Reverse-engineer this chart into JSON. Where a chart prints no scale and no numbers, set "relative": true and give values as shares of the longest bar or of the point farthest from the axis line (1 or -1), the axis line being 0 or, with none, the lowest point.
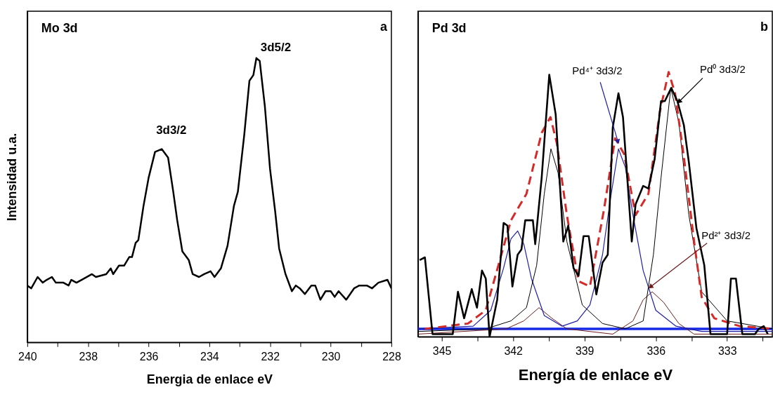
{
  "chart_data": [
    {
      "type": "line",
      "title": "Mo 3d",
      "xlabel": "Energia de enlace eV",
      "ylabel": "Intensidad u.a.",
      "relative": true,
      "grid": false,
      "xlim": [
        240,
        228
      ],
      "xticks": [
        240,
        {
          "value": 239,
          "label": null
        },
        238,
        {
          "value": 237,
          "label": null
        },
        236,
        {
          "value": 235,
          "label": null
        },
        234,
        {
          "value": 233,
          "label": null
        },
        232,
        {
          "value": 231,
          "label": null
        },
        230,
        {
          "value": 229,
          "label": null
        },
        228
      ],
      "annotations": [
        {
          "text": "3d3/2",
          "x": 235.57,
          "y": 0.68
        },
        {
          "text": "3d5/2",
          "x": 232.45,
          "y": 1.0
        },
        "a"
      ],
      "series": [
        {
          "color": "#000000",
          "x": [
            240.0,
            239.87,
            239.66,
            239.49,
            239.36,
            239.19,
            239.06,
            238.81,
            238.64,
            238.55,
            238.38,
            238.21,
            237.87,
            237.74,
            237.4,
            237.25,
            237.17,
            236.98,
            236.81,
            236.64,
            236.55,
            236.43,
            236.34,
            236.17,
            236.0,
            235.79,
            235.57,
            235.36,
            235.19,
            235.06,
            234.89,
            234.68,
            234.55,
            234.34,
            234.17,
            233.96,
            233.83,
            233.62,
            233.4,
            233.19,
            233.06,
            232.85,
            232.68,
            232.55,
            232.45,
            232.34,
            232.17,
            232.0,
            231.83,
            231.7,
            231.49,
            231.28,
            231.15,
            231.02,
            230.85,
            230.64,
            230.51,
            230.34,
            230.17,
            230.0,
            229.87,
            229.74,
            229.49,
            229.23,
            229.06,
            228.81,
            228.64,
            228.43,
            228.13,
            228.0
          ],
          "values": [
            0.2,
            0.19,
            0.23,
            0.21,
            0.22,
            0.23,
            0.21,
            0.21,
            0.2,
            0.22,
            0.21,
            0.22,
            0.24,
            0.23,
            0.24,
            0.26,
            0.24,
            0.27,
            0.27,
            0.3,
            0.3,
            0.35,
            0.36,
            0.48,
            0.58,
            0.67,
            0.68,
            0.65,
            0.53,
            0.43,
            0.32,
            0.29,
            0.24,
            0.23,
            0.24,
            0.25,
            0.23,
            0.26,
            0.34,
            0.48,
            0.53,
            0.73,
            0.92,
            0.94,
            1.0,
            0.99,
            0.83,
            0.61,
            0.46,
            0.33,
            0.24,
            0.18,
            0.2,
            0.19,
            0.17,
            0.2,
            0.2,
            0.15,
            0.18,
            0.18,
            0.16,
            0.18,
            0.15,
            0.19,
            0.2,
            0.2,
            0.19,
            0.21,
            0.22,
            0.19
          ]
        }
      ]
    },
    {
      "type": "line",
      "title": "Pd 3d",
      "xlabel": "Energía de enlace eV",
      "relative": true,
      "grid": false,
      "xlim": [
        346,
        331.1
      ],
      "xticks": [
        345,
        {
          "value": 343.5,
          "label": null
        },
        342,
        {
          "value": 340.5,
          "label": null
        },
        339,
        {
          "value": 337.5,
          "label": null
        },
        336,
        {
          "value": 334.5,
          "label": null
        },
        333,
        {
          "value": 331.5,
          "label": null
        }
      ],
      "annotations": [
        {
          "text": "Pd⁴⁺ 3d3/2",
          "x": 337.6,
          "y": 0.74
        },
        {
          "text": "Pd⁰ 3d3/2",
          "x": 335.0,
          "y": 0.89
        },
        {
          "text": "Pd²⁺ 3d3/2",
          "x": 336.2,
          "y": 0.19
        },
        "b"
      ],
      "series": [
        {
          "color": "#1428e6",
          "x": [
            346,
            331.1
          ],
          "values": [
            0.03,
            0.03
          ]
        },
        {
          "color": "#6b1a1a",
          "x": [
            346,
            342.29,
            341.55,
            340.91,
            340.37,
            339.74,
            337.81,
            336.96,
            336.53,
            336.15,
            335.67,
            335.03,
            334.39,
            331.1
          ],
          "values": [
            0.01,
            0.03,
            0.06,
            0.11,
            0.07,
            0.03,
            0.01,
            0.06,
            0.14,
            0.17,
            0.13,
            0.05,
            0.01,
            0.01
          ]
        },
        {
          "color": "#1f1fa8",
          "x": [
            346,
            343.68,
            342.94,
            342.4,
            342.09,
            341.81,
            341.55,
            341.23,
            340.69,
            339.94,
            339.3,
            338.77,
            338.24,
            337.91,
            337.57,
            337.28,
            336.96,
            336.53,
            336.0,
            335.15,
            334.07,
            331.1
          ],
          "values": [
            0.03,
            0.04,
            0.1,
            0.26,
            0.37,
            0.4,
            0.35,
            0.22,
            0.08,
            0.04,
            0.06,
            0.12,
            0.31,
            0.52,
            0.71,
            0.64,
            0.46,
            0.25,
            0.1,
            0.04,
            0.02,
            0.02
          ]
        },
        {
          "color": "#000000",
          "x": [
            346,
            343.15,
            342.09,
            341.44,
            341.01,
            340.69,
            340.41,
            340.11,
            339.74,
            339.09,
            338.24,
            337.28,
            336.53,
            336.1,
            335.78,
            335.37,
            335.03,
            334.61,
            334.07,
            333.0,
            331.1
          ],
          "values": [
            0.02,
            0.03,
            0.06,
            0.11,
            0.27,
            0.54,
            0.71,
            0.62,
            0.36,
            0.12,
            0.05,
            0.03,
            0.06,
            0.31,
            0.6,
            0.94,
            0.81,
            0.46,
            0.17,
            0.06,
            0.03
          ]
        },
        {
          "color": "#d42a2a",
          "line_style": "dashed",
          "x": [
            345.71,
            343.9,
            343.15,
            342.62,
            342.09,
            341.44,
            340.8,
            340.43,
            340.16,
            339.74,
            339.25,
            338.77,
            338.18,
            337.71,
            337.33,
            336.85,
            336.31,
            335.83,
            335.46,
            335.19,
            334.82,
            334.39,
            334.07,
            333.54,
            332.47,
            331.1
          ],
          "values": [
            0.03,
            0.05,
            0.1,
            0.27,
            0.44,
            0.54,
            0.77,
            0.83,
            0.73,
            0.46,
            0.21,
            0.19,
            0.48,
            0.75,
            0.69,
            0.46,
            0.54,
            0.85,
            1.0,
            0.92,
            0.68,
            0.36,
            0.15,
            0.07,
            0.04,
            0.03
          ]
        },
        {
          "color": "#000000",
          "x": [
            345.93,
            345.71,
            345.39,
            344.54,
            344.32,
            344.06,
            343.74,
            343.52,
            343.31,
            343.15,
            342.99,
            342.67,
            342.4,
            342.24,
            342.03,
            341.81,
            341.65,
            341.49,
            341.17,
            341.07,
            340.8,
            340.48,
            340.21,
            339.89,
            339.68,
            339.46,
            339.25,
            339.04,
            338.82,
            338.5,
            338.24,
            338.02,
            337.81,
            337.57,
            337.38,
            337.01,
            336.85,
            336.53,
            336.31,
            336.05,
            335.78,
            335.62,
            335.35,
            335.09,
            334.82,
            334.61,
            334.29,
            333.96,
            333.7,
            333.0,
            332.84,
            332.63,
            332.36,
            331.83,
            331.67,
            331.46,
            331.29
          ],
          "values": [
            0.29,
            0.3,
            0.01,
            0.01,
            0.17,
            0.07,
            0.18,
            0.11,
            0.25,
            0.22,
            0.0,
            0.14,
            0.43,
            0.42,
            0.19,
            0.31,
            0.33,
            0.44,
            0.44,
            0.35,
            0.6,
            0.99,
            0.84,
            0.36,
            0.42,
            0.26,
            0.23,
            0.38,
            0.38,
            0.16,
            0.28,
            0.31,
            0.79,
            0.92,
            0.83,
            0.36,
            0.5,
            0.57,
            0.56,
            0.67,
            0.89,
            0.89,
            0.94,
            0.89,
            0.8,
            0.66,
            0.41,
            0.27,
            0.01,
            0.01,
            0.22,
            0.22,
            0.01,
            0.01,
            0.03,
            0.04,
            0.01
          ]
        }
      ]
    }
  ]
}
